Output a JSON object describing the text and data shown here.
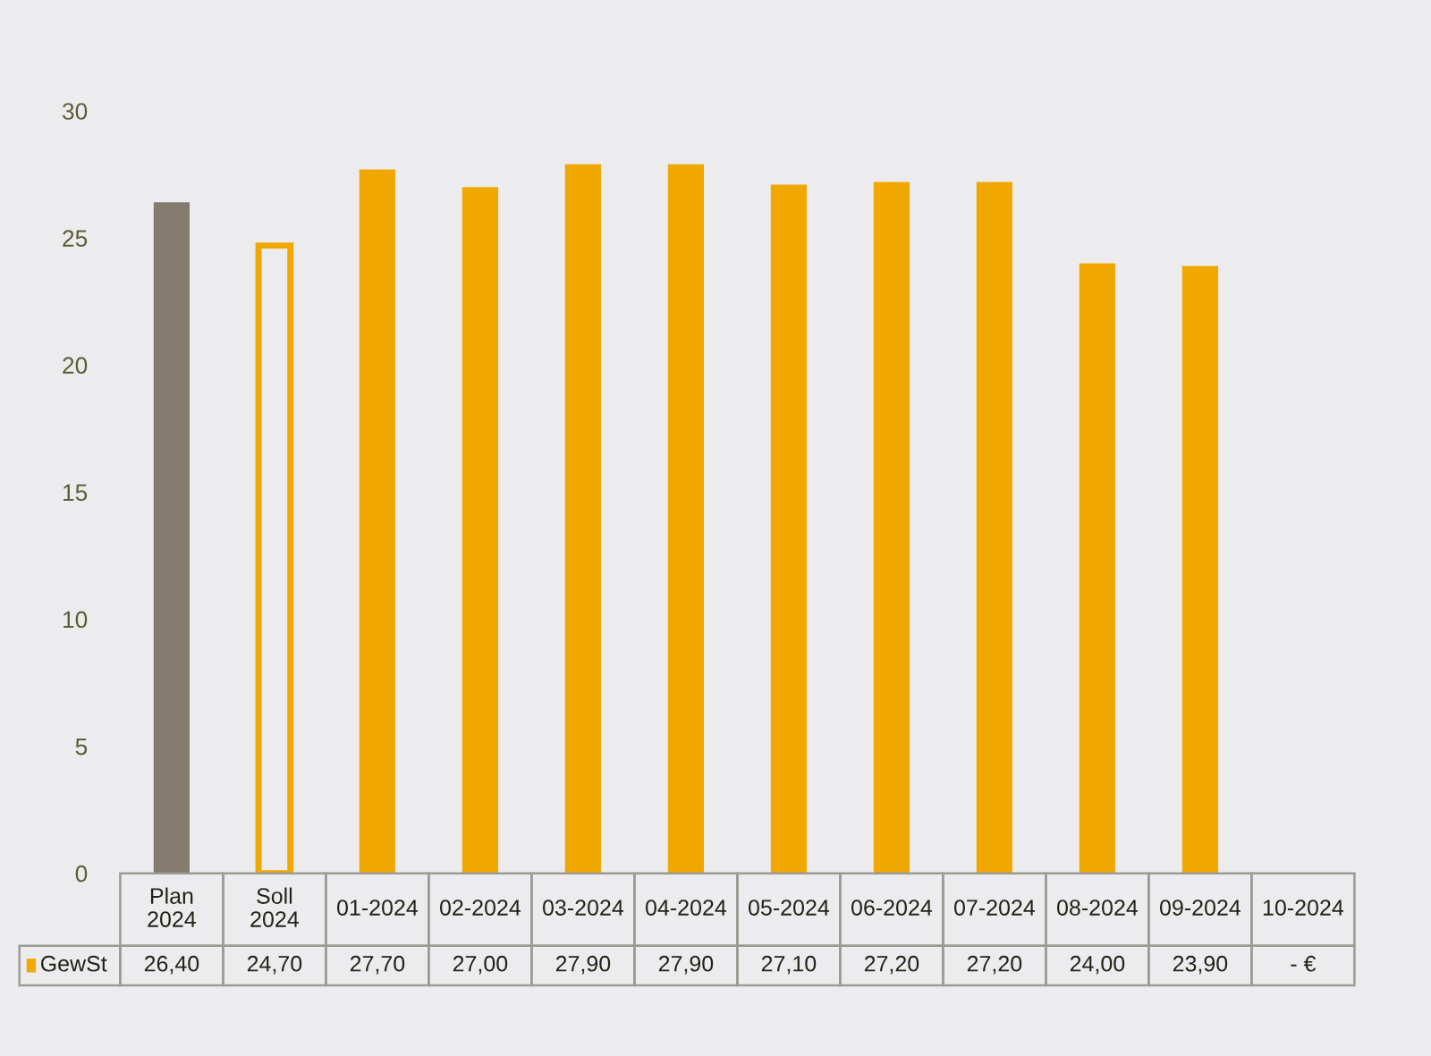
{
  "chart_data": {
    "type": "bar",
    "categories": [
      "Plan 2024",
      "Soll 2024",
      "01-2024",
      "02-2024",
      "03-2024",
      "04-2024",
      "05-2024",
      "06-2024",
      "07-2024",
      "08-2024",
      "09-2024",
      "10-2024"
    ],
    "series": [
      {
        "name": "GewSt",
        "color": "#f0a800",
        "colors": [
          "#857a6e",
          null,
          "#f0a800",
          "#f0a800",
          "#f0a800",
          "#f0a800",
          "#f0a800",
          "#f0a800",
          "#f0a800",
          "#f0a800",
          "#f0a800",
          "#f0a800"
        ],
        "values": [
          26.4,
          24.7,
          27.7,
          27.0,
          27.9,
          27.9,
          27.1,
          27.2,
          27.2,
          24.0,
          23.9,
          null
        ],
        "value_labels": [
          "26,40",
          "24,70",
          "27,70",
          "27,00",
          "27,90",
          "27,90",
          "27,10",
          "27,20",
          "27,20",
          "24,00",
          "23,90",
          "- €"
        ]
      }
    ],
    "ylim": [
      0,
      30
    ],
    "yticks": [
      0,
      5,
      10,
      15,
      20,
      25,
      30
    ],
    "legend": "bottom"
  }
}
